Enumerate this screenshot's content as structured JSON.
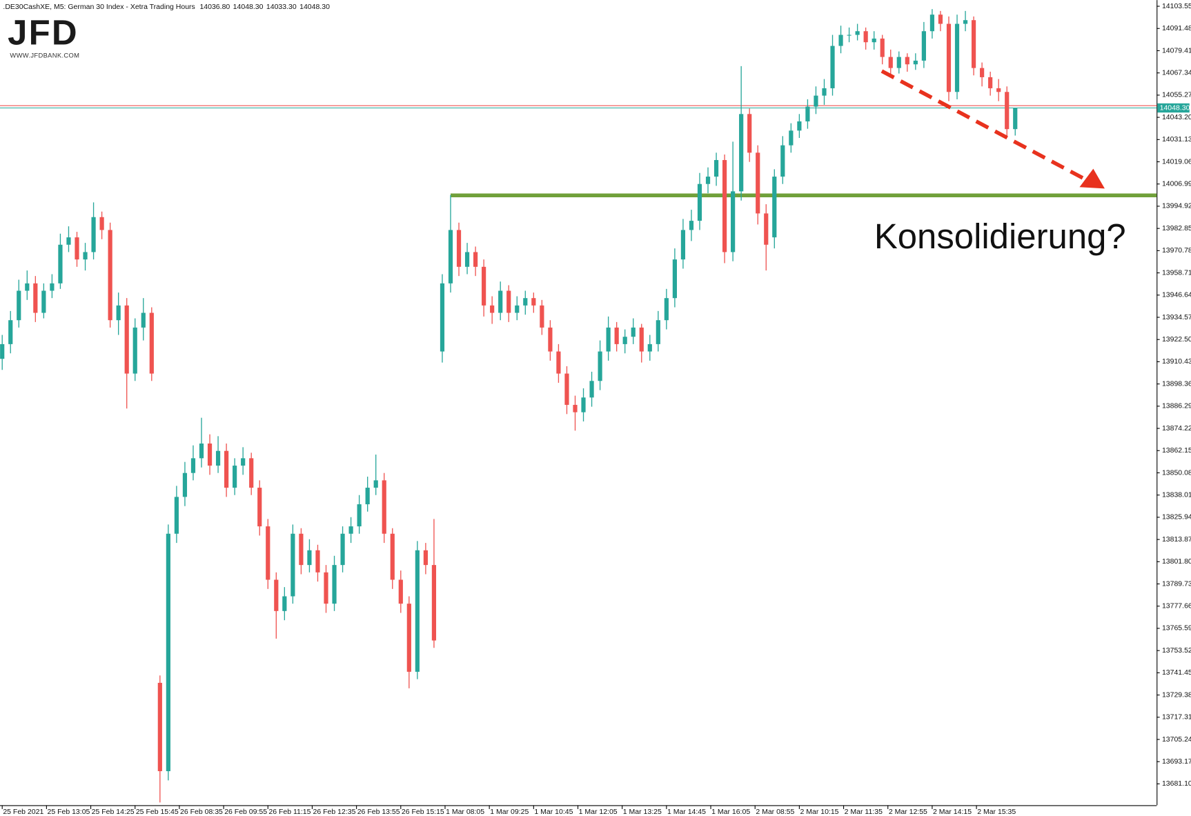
{
  "logo": {
    "text": "JFD",
    "url": "WWW.JFDBANK.COM"
  },
  "chart_data": {
    "type": "candlestick",
    "title": ".DE30CashXE, M5:  German 30 Index  - Xetra Trading Hours",
    "header_prices": [
      "14036.80",
      "14048.30",
      "14033.30",
      "14048.30"
    ],
    "annotation": "Konsolidierung?",
    "up_color": "#26a69a",
    "down_color": "#ef5350",
    "level_color": "#70a03a",
    "level": {
      "value": 14000.8,
      "x": 162
    },
    "last_price": {
      "value": 14048.3,
      "label": "14048.30"
    },
    "xlim": [
      -0.8,
      417.1
    ],
    "ylim": [
      13669.5,
      14106.9
    ],
    "xticks": [
      {
        "value": 0,
        "label": "25 Feb 2021"
      },
      {
        "value": 16,
        "label": "25 Feb 13:05"
      },
      {
        "value": 32,
        "label": "25 Feb 14:25"
      },
      {
        "value": 48,
        "label": "25 Feb 15:45"
      },
      {
        "value": 64,
        "label": "26 Feb 08:35"
      },
      {
        "value": 80,
        "label": "26 Feb 09:55"
      },
      {
        "value": 96,
        "label": "26 Feb 11:15"
      },
      {
        "value": 112,
        "label": "26 Feb 12:35"
      },
      {
        "value": 128,
        "label": "26 Feb 13:55"
      },
      {
        "value": 144,
        "label": "26 Feb 15:15"
      },
      {
        "value": 160,
        "label": "1 Mar 08:05"
      },
      {
        "value": 176,
        "label": "1 Mar 09:25"
      },
      {
        "value": 192,
        "label": "1 Mar 10:45"
      },
      {
        "value": 208,
        "label": "1 Mar 12:05"
      },
      {
        "value": 224,
        "label": "1 Mar 13:25"
      },
      {
        "value": 240,
        "label": "1 Mar 14:45"
      },
      {
        "value": 256,
        "label": "1 Mar 16:05"
      },
      {
        "value": 272,
        "label": "2 Mar 08:55"
      },
      {
        "value": 288,
        "label": "2 Mar 10:15"
      },
      {
        "value": 304,
        "label": "2 Mar 11:35"
      },
      {
        "value": 320,
        "label": "2 Mar 12:55"
      },
      {
        "value": 336,
        "label": "2 Mar 14:15"
      },
      {
        "value": 352,
        "label": "2 Mar 15:35"
      }
    ],
    "yticks": [
      14103.55,
      14091.48,
      14079.41,
      14067.34,
      14055.27,
      {
        "value": 14043.2,
        "label": "14043.20"
      },
      14031.13,
      14019.06,
      14006.99,
      13994.92,
      13982.85,
      13970.78,
      13958.71,
      13946.64,
      13934.57,
      {
        "value": 13922.5,
        "label": "13922.50"
      },
      13910.43,
      13898.36,
      13886.29,
      13874.22,
      13862.15,
      13850.08,
      13838.01,
      13825.94,
      13813.87,
      {
        "value": 13801.8,
        "label": "13801.80"
      },
      13789.73,
      13777.66,
      13765.59,
      13753.52,
      13741.45,
      13729.38,
      13717.31,
      13705.24,
      13693.17,
      {
        "value": 13681.1,
        "label": "13681.10"
      }
    ],
    "x": [
      0,
      3,
      6,
      9,
      12,
      15,
      18,
      21,
      24,
      27,
      30,
      33,
      36,
      39,
      42,
      45,
      48,
      51,
      54,
      57,
      60,
      63,
      66,
      69,
      72,
      75,
      78,
      81,
      84,
      87,
      90,
      93,
      96,
      99,
      102,
      105,
      108,
      111,
      114,
      117,
      120,
      123,
      126,
      129,
      132,
      135,
      138,
      141,
      144,
      147,
      150,
      153,
      156,
      159,
      162,
      165,
      168,
      171,
      174,
      177,
      180,
      183,
      186,
      189,
      192,
      195,
      198,
      201,
      204,
      207,
      210,
      213,
      216,
      219,
      222,
      225,
      228,
      231,
      234,
      237,
      240,
      243,
      246,
      249,
      252,
      255,
      258,
      261,
      264,
      267,
      270,
      273,
      276,
      279,
      282,
      285,
      288,
      291,
      294,
      297,
      300,
      303,
      306,
      309,
      312,
      315,
      318,
      321,
      324,
      327,
      330,
      333,
      336,
      339,
      342,
      345,
      348,
      351,
      354,
      357,
      360,
      363,
      366
    ],
    "open": [
      13912,
      13920,
      13933,
      13949,
      13953,
      13937,
      13949,
      13953,
      13974,
      13978,
      13966,
      13970,
      13989,
      13982,
      13933,
      13941,
      13904,
      13929,
      13937,
      13736,
      13688,
      13817,
      13837,
      13850,
      13858,
      13866,
      13854,
      13862,
      13842,
      13854,
      13858,
      13842,
      13821,
      13792,
      13775,
      13783,
      13817,
      13800,
      13808,
      13796,
      13779,
      13800,
      13817,
      13821,
      13833,
      13842,
      13846,
      13817,
      13792,
      13779,
      13742,
      13808,
      13800,
      13916,
      13953,
      13982,
      13962,
      13970,
      13962,
      13941,
      13937,
      13949,
      13937,
      13941,
      13945,
      13941,
      13929,
      13916,
      13904,
      13887,
      13883,
      13891,
      13900,
      13916,
      13929,
      13920,
      13924,
      13929,
      13916,
      13920,
      13933,
      13945,
      13966,
      13982,
      13987,
      14007,
      14011,
      14020,
      13970,
      14003,
      14045,
      14024,
      13991,
      13978,
      14011,
      14028,
      14036,
      14041,
      14049,
      14055,
      14059,
      14082,
      14088,
      14088,
      14090,
      14084,
      14086,
      14076,
      14070,
      14076,
      14072,
      14074,
      14090,
      14099,
      14094,
      14057,
      14094,
      14096,
      14070,
      14065,
      14059,
      14057,
      14036.8
    ],
    "high": [
      13925,
      13938,
      13955,
      13960,
      13957,
      13953,
      13958,
      13980,
      13984,
      13981,
      13975,
      13997,
      13992,
      13986,
      13948,
      13945,
      13934,
      13945,
      13940,
      13740,
      13822,
      13843,
      13856,
      13865,
      13880,
      13871,
      13870,
      13866,
      13858,
      13864,
      13861,
      13846,
      13825,
      13796,
      13788,
      13822,
      13820,
      13814,
      13811,
      13800,
      13805,
      13821,
      13826,
      13838,
      13848,
      13860,
      13850,
      13820,
      13797,
      13783,
      13813,
      13812,
      13825,
      13958,
      14001,
      13986,
      13975,
      13973,
      13966,
      13946,
      13954,
      13952,
      13946,
      13949,
      13948,
      13944,
      13933,
      13920,
      13908,
      13892,
      13896,
      13905,
      13922,
      13935,
      13932,
      13928,
      13934,
      13931,
      13925,
      13938,
      13950,
      13972,
      13988,
      13993,
      14013,
      14016,
      14024,
      14023,
      14030,
      14071,
      14048,
      14028,
      13996,
      14015,
      14033,
      14040,
      14045,
      14053,
      14060,
      14064,
      14088,
      14093,
      14092,
      14094,
      14092,
      14090,
      14088,
      14080,
      14079,
      14078,
      14078,
      14095,
      14102,
      14101,
      14098,
      14099,
      14101,
      14098,
      14073,
      14068,
      14064,
      14060,
      14048.3
    ],
    "low": [
      13906,
      13915,
      13929,
      13944,
      13932,
      13934,
      13945,
      13950,
      13970,
      13962,
      13960,
      13966,
      13977,
      13929,
      13925,
      13885,
      13900,
      13922,
      13900,
      13671,
      13683,
      13812,
      13832,
      13846,
      13853,
      13849,
      13850,
      13837,
      13838,
      13849,
      13838,
      13816,
      13787,
      13760,
      13770,
      13779,
      13795,
      13796,
      13791,
      13774,
      13775,
      13796,
      13812,
      13817,
      13829,
      13838,
      13812,
      13787,
      13774,
      13733,
      13738,
      13795,
      13755,
      13910,
      13948,
      13957,
      13958,
      13957,
      13935,
      13931,
      13933,
      13932,
      13933,
      13936,
      13937,
      13925,
      13911,
      13899,
      13882,
      13873,
      13878,
      13886,
      13895,
      13911,
      13916,
      13915,
      13920,
      13910,
      13911,
      13916,
      13928,
      13940,
      13961,
      13976,
      13982,
      14002,
      14006,
      13964,
      13965,
      13998,
      14019,
      13985,
      13960,
      13972,
      14007,
      14024,
      14032,
      14037,
      14045,
      14050,
      14055,
      14078,
      14084,
      14085,
      14080,
      14080,
      14072,
      14066,
      14067,
      14068,
      14069,
      14070,
      14086,
      14090,
      14052,
      14053,
      14090,
      14066,
      14060,
      14055,
      14052,
      14032,
      14033.3
    ],
    "close": [
      13920,
      13933,
      13949,
      13953,
      13937,
      13949,
      13953,
      13974,
      13978,
      13966,
      13970,
      13989,
      13982,
      13933,
      13941,
      13904,
      13929,
      13937,
      13904,
      13688,
      13817,
      13837,
      13850,
      13858,
      13866,
      13854,
      13862,
      13842,
      13854,
      13858,
      13842,
      13821,
      13792,
      13775,
      13783,
      13817,
      13800,
      13808,
      13796,
      13779,
      13800,
      13817,
      13821,
      13833,
      13842,
      13846,
      13817,
      13792,
      13779,
      13742,
      13808,
      13800,
      13759,
      13953,
      13982,
      13962,
      13970,
      13962,
      13941,
      13937,
      13949,
      13937,
      13941,
      13945,
      13941,
      13929,
      13916,
      13904,
      13887,
      13883,
      13891,
      13900,
      13916,
      13929,
      13920,
      13924,
      13929,
      13916,
      13920,
      13933,
      13945,
      13966,
      13982,
      13987,
      14007,
      14011,
      14020,
      13970,
      14003,
      14045,
      14024,
      13991,
      13974,
      14011,
      14028,
      14036,
      14041,
      14049,
      14055,
      14059,
      14082,
      14088,
      14088,
      14090,
      14084,
      14086,
      14076,
      14070,
      14076,
      14072,
      14074,
      14090,
      14099,
      14094,
      14057,
      14094,
      14096,
      14070,
      14065,
      14059,
      14057,
      14036.8,
      14048.3
    ]
  }
}
